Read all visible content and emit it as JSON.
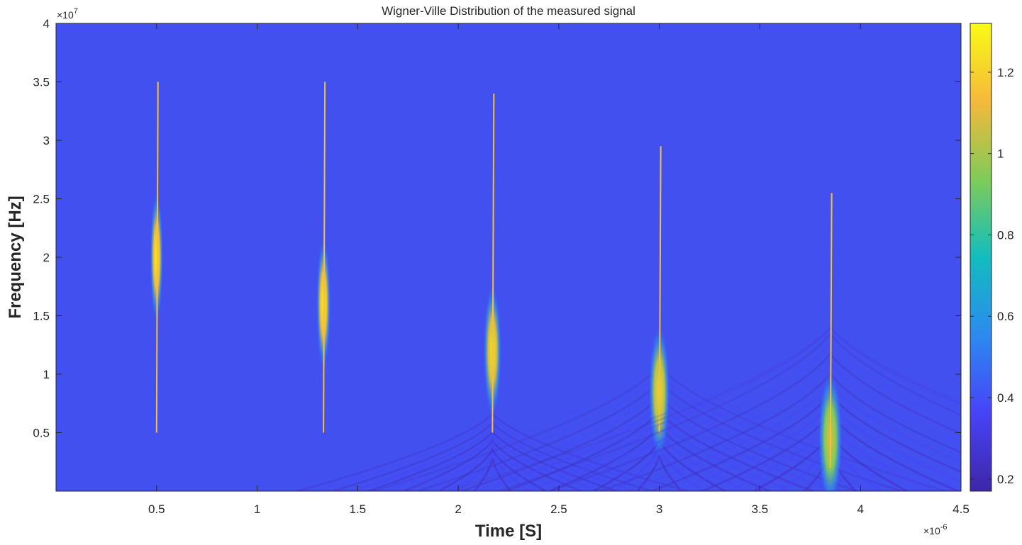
{
  "chart_data": {
    "type": "heatmap",
    "title": "Wigner-Ville Distribution of the measured signal",
    "xlabel": "Time [S]",
    "ylabel": "Frequency [Hz]",
    "x_exponent_label": "×10",
    "x_exponent": "-6",
    "y_exponent_label": "×10",
    "y_exponent": "7",
    "xlim": [
      0,
      4.5
    ],
    "ylim": [
      0,
      4
    ],
    "x_ticks": [
      0.5,
      1,
      1.5,
      2,
      2.5,
      3,
      3.5,
      4,
      4.5
    ],
    "x_tick_labels": [
      "0.5",
      "1",
      "1.5",
      "2",
      "2.5",
      "3",
      "3.5",
      "4",
      "4.5"
    ],
    "y_ticks": [
      0.5,
      1,
      1.5,
      2,
      2.5,
      3,
      3.5,
      4
    ],
    "y_tick_labels": [
      "0.5",
      "1",
      "1.5",
      "2",
      "2.5",
      "3",
      "3.5",
      "4"
    ],
    "colorbar": {
      "ticks": [
        0.2,
        0.4,
        0.6,
        0.8,
        1,
        1.2
      ],
      "tick_labels": [
        "0.2",
        "0.4",
        "0.6",
        "0.8",
        "1",
        "1.2"
      ],
      "range": [
        0.17,
        1.32
      ]
    },
    "background_value": 0.32,
    "pulses": [
      {
        "time": 0.5,
        "freq_center": 2.0,
        "freq_min": 0.5,
        "freq_max": 3.5,
        "peak": 1.3,
        "spread": 0.0
      },
      {
        "time": 1.33,
        "freq_center": 1.6,
        "freq_min": 0.5,
        "freq_max": 3.5,
        "peak": 1.3,
        "spread": 0.1
      },
      {
        "time": 2.17,
        "freq_center": 1.2,
        "freq_min": 0.5,
        "freq_max": 3.4,
        "peak": 1.25,
        "spread": 0.45
      },
      {
        "time": 3.0,
        "freq_center": 0.85,
        "freq_min": 0.5,
        "freq_max": 2.95,
        "peak": 1.2,
        "spread": 0.75
      },
      {
        "time": 3.85,
        "freq_center": 0.45,
        "freq_min": 0.2,
        "freq_max": 2.55,
        "peak": 1.1,
        "spread": 1.0
      }
    ],
    "grid": false,
    "colormap": "parula"
  },
  "colors": {
    "background": "#4350f0",
    "colormap_stops": [
      "#3e26a8",
      "#4743f8",
      "#2c8af0",
      "#12bdbf",
      "#80cb58",
      "#f5b93b",
      "#f9fb15"
    ],
    "axis": "#262626",
    "text": "#262626"
  }
}
